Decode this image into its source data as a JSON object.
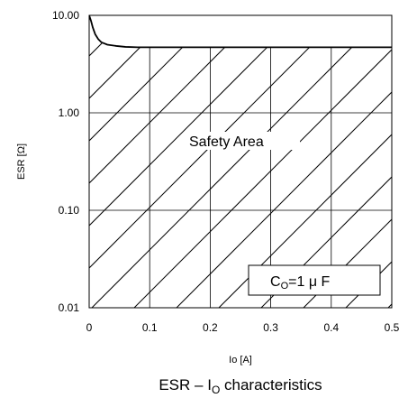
{
  "chart_data": {
    "type": "line",
    "title": "",
    "caption": {
      "main": "ESR – I",
      "sub": "O",
      "rest": " characteristics"
    },
    "xlabel": "Io [A]",
    "ylabel": "ESR [Ω]",
    "xlim": [
      0,
      0.5
    ],
    "ylim": [
      0.01,
      10
    ],
    "yscale": "log",
    "grid": true,
    "x_ticks": [
      {
        "value": 0,
        "label": "0"
      },
      {
        "value": 0.1,
        "label": "0.1"
      },
      {
        "value": 0.2,
        "label": "0.2"
      },
      {
        "value": 0.3,
        "label": "0.3"
      },
      {
        "value": 0.4,
        "label": "0.4"
      },
      {
        "value": 0.5,
        "label": "0.5"
      }
    ],
    "y_ticks": [
      {
        "value": 0.01,
        "label": "0.01"
      },
      {
        "value": 0.1,
        "label": "0.10"
      },
      {
        "value": 1,
        "label": "1.00"
      },
      {
        "value": 10,
        "label": "10.00"
      }
    ],
    "series": [
      {
        "x": [
          0.0,
          0.003,
          0.006,
          0.01,
          0.015,
          0.02,
          0.03,
          0.045,
          0.06,
          0.08,
          0.1,
          0.2,
          0.3,
          0.4,
          0.5
        ],
        "y": [
          10.0,
          8.8,
          7.5,
          6.4,
          5.7,
          5.3,
          5.0,
          4.85,
          4.75,
          4.7,
          4.7,
          4.7,
          4.7,
          4.7,
          4.7
        ]
      }
    ],
    "region_annotation": "Safety Area",
    "condition_label": {
      "prefix": "C",
      "sub": "O",
      "rest": "=1 μ F"
    }
  }
}
